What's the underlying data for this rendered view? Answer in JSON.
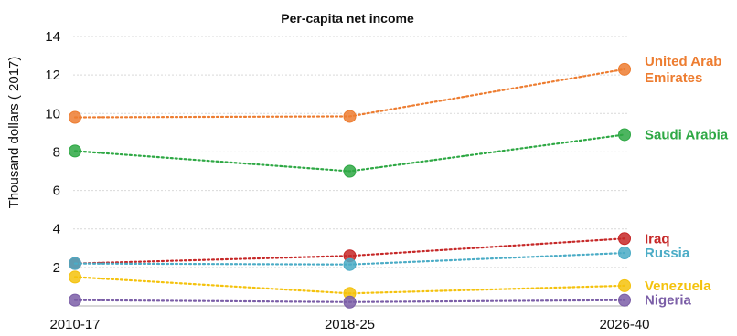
{
  "chart_data": {
    "type": "line",
    "title": "Per-capita net income",
    "xlabel": "",
    "ylabel": "Thousand dollars ( 2017)",
    "categories": [
      "2010-17",
      "2018-25",
      "2026-40"
    ],
    "ylim": [
      0,
      14
    ],
    "yticks": [
      2,
      4,
      6,
      8,
      10,
      12,
      14
    ],
    "grid": true,
    "line_style": "dotted",
    "series": [
      {
        "name": "United Arab Emirates",
        "label_lines": [
          "United Arab",
          "Emirates"
        ],
        "color": "#ED7D31",
        "values": [
          9.8,
          9.85,
          12.3
        ]
      },
      {
        "name": "Saudi Arabia",
        "label_lines": [
          "Saudi Arabia"
        ],
        "color": "#2EA844",
        "values": [
          8.05,
          7.0,
          8.9
        ]
      },
      {
        "name": "Iraq",
        "label_lines": [
          "Iraq"
        ],
        "color": "#C62828",
        "values": [
          2.2,
          2.6,
          3.5
        ]
      },
      {
        "name": "Russia",
        "label_lines": [
          "Russia"
        ],
        "color": "#4BACC6",
        "values": [
          2.2,
          2.15,
          2.75
        ]
      },
      {
        "name": "Venezuela",
        "label_lines": [
          "Venezuela"
        ],
        "color": "#F4C20D",
        "values": [
          1.5,
          0.65,
          1.05
        ]
      },
      {
        "name": "Nigeria",
        "label_lines": [
          "Nigeria"
        ],
        "color": "#7B5EA7",
        "values": [
          0.3,
          0.2,
          0.3
        ]
      }
    ]
  }
}
